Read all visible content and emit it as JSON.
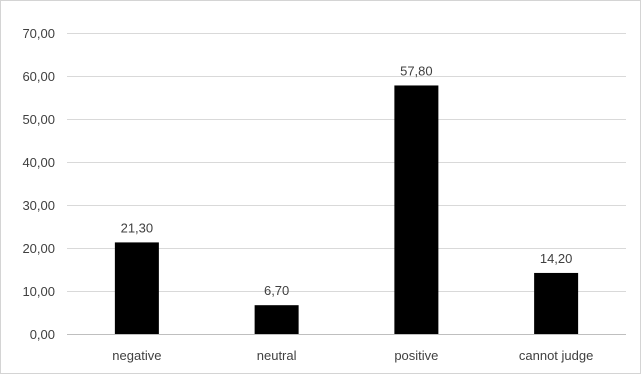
{
  "chart_data": {
    "type": "bar",
    "categories": [
      "negative",
      "neutral",
      "positive",
      "cannot judge"
    ],
    "values": [
      21.3,
      6.7,
      57.8,
      14.2
    ],
    "value_labels": [
      "21,30",
      "6,70",
      "57,80",
      "14,20"
    ],
    "yticks": [
      0,
      10,
      20,
      30,
      40,
      50,
      60,
      70
    ],
    "ytick_labels": [
      "0,00",
      "10,00",
      "20,00",
      "30,00",
      "40,00",
      "50,00",
      "60,00",
      "70,00"
    ],
    "ylim": [
      0,
      70
    ],
    "grid": true,
    "bar_color": "#000000",
    "gridline_color": "#d9d9d9",
    "text_color": "#404040"
  }
}
